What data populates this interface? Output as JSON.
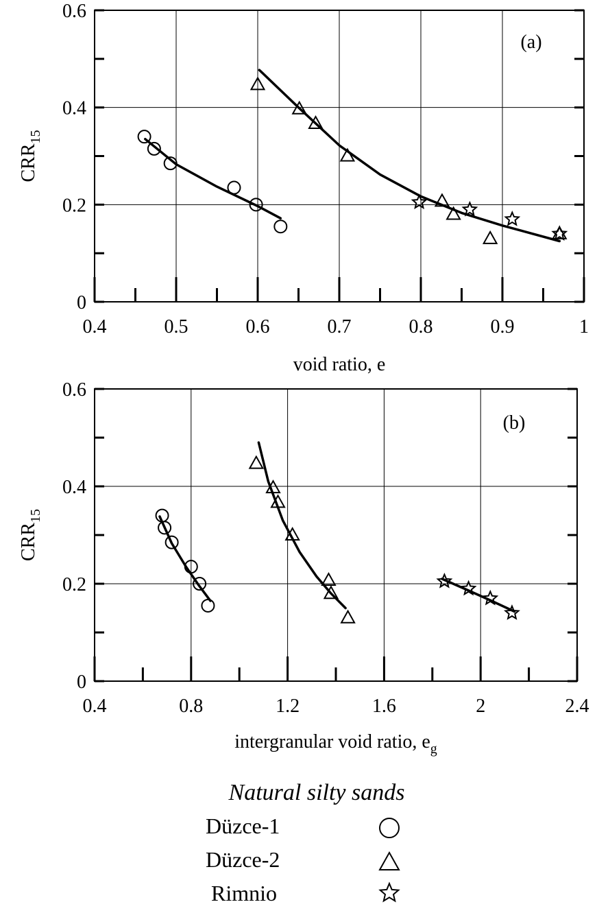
{
  "chart_data": [
    {
      "type": "scatter",
      "panel_label": "(a)",
      "xlabel": "void ratio, e",
      "xlabel_sub": "",
      "ylabel": "CRR",
      "ylabel_sub": "15",
      "xlim": [
        0.4,
        1.0
      ],
      "ylim": [
        0,
        0.6
      ],
      "xticks": [
        0.4,
        0.5,
        0.6,
        0.7,
        0.8,
        0.9,
        1.0
      ],
      "xtick_labels": [
        "0.4",
        "0.5",
        "0.6",
        "0.7",
        "0.8",
        "0.9",
        "1"
      ],
      "yticks": [
        0,
        0.2,
        0.4,
        0.6
      ],
      "ytick_labels": [
        "0",
        "0.2",
        "0.4",
        "0.6"
      ],
      "grid": true,
      "series": [
        {
          "name": "Düzce-1",
          "marker": "circle",
          "points": [
            [
              0.461,
              0.34
            ],
            [
              0.473,
              0.315
            ],
            [
              0.493,
              0.285
            ],
            [
              0.571,
              0.235
            ],
            [
              0.598,
              0.2
            ],
            [
              0.628,
              0.155
            ]
          ],
          "fit": [
            [
              0.462,
              0.335
            ],
            [
              0.5,
              0.283
            ],
            [
              0.55,
              0.237
            ],
            [
              0.6,
              0.197
            ],
            [
              0.628,
              0.172
            ]
          ]
        },
        {
          "name": "Düzce-2",
          "marker": "triangle",
          "points": [
            [
              0.6,
              0.447
            ],
            [
              0.651,
              0.397
            ],
            [
              0.671,
              0.367
            ],
            [
              0.71,
              0.3
            ],
            [
              0.826,
              0.207
            ],
            [
              0.84,
              0.18
            ],
            [
              0.885,
              0.13
            ],
            [
              0.97,
              0.14
            ]
          ],
          "fit": [
            [
              0.602,
              0.477
            ],
            [
              0.65,
              0.4
            ],
            [
              0.7,
              0.322
            ],
            [
              0.75,
              0.262
            ],
            [
              0.8,
              0.217
            ],
            [
              0.85,
              0.183
            ],
            [
              0.9,
              0.157
            ],
            [
              0.97,
              0.125
            ]
          ]
        },
        {
          "name": "Rimnio",
          "marker": "star",
          "points": [
            [
              0.798,
              0.205
            ],
            [
              0.86,
              0.19
            ],
            [
              0.912,
              0.17
            ],
            [
              0.97,
              0.14
            ]
          ],
          "fit": []
        }
      ]
    },
    {
      "type": "scatter",
      "panel_label": "(b)",
      "xlabel": "intergranular void ratio, e",
      "xlabel_sub": "g",
      "ylabel": "CRR",
      "ylabel_sub": "15",
      "xlim": [
        0.4,
        2.4
      ],
      "ylim": [
        0,
        0.6
      ],
      "xticks": [
        0.4,
        0.8,
        1.2,
        1.6,
        2.0,
        2.4
      ],
      "xtick_labels": [
        "0.4",
        "0.8",
        "1.2",
        "1.6",
        "2",
        "2.4"
      ],
      "yticks": [
        0,
        0.2,
        0.4,
        0.6
      ],
      "ytick_labels": [
        "0",
        "0.2",
        "0.4",
        "0.6"
      ],
      "grid": true,
      "series": [
        {
          "name": "Düzce-1",
          "marker": "circle",
          "points": [
            [
              0.68,
              0.34
            ],
            [
              0.69,
              0.315
            ],
            [
              0.72,
              0.285
            ],
            [
              0.8,
              0.235
            ],
            [
              0.835,
              0.2
            ],
            [
              0.87,
              0.155
            ]
          ],
          "fit": [
            [
              0.67,
              0.338
            ],
            [
              0.72,
              0.283
            ],
            [
              0.78,
              0.234
            ],
            [
              0.83,
              0.198
            ],
            [
              0.88,
              0.165
            ]
          ]
        },
        {
          "name": "Düzce-2",
          "marker": "triangle",
          "points": [
            [
              1.07,
              0.447
            ],
            [
              1.14,
              0.397
            ],
            [
              1.16,
              0.367
            ],
            [
              1.22,
              0.3
            ],
            [
              1.37,
              0.207
            ],
            [
              1.38,
              0.18
            ],
            [
              1.45,
              0.13
            ]
          ],
          "fit": [
            [
              1.08,
              0.49
            ],
            [
              1.12,
              0.41
            ],
            [
              1.18,
              0.33
            ],
            [
              1.25,
              0.265
            ],
            [
              1.32,
              0.215
            ],
            [
              1.38,
              0.18
            ],
            [
              1.44,
              0.15
            ]
          ]
        },
        {
          "name": "Rimnio",
          "marker": "star",
          "points": [
            [
              1.85,
              0.205
            ],
            [
              1.95,
              0.19
            ],
            [
              2.04,
              0.17
            ],
            [
              2.13,
              0.14
            ]
          ],
          "fit": [
            [
              1.84,
              0.21
            ],
            [
              1.95,
              0.186
            ],
            [
              2.04,
              0.166
            ],
            [
              2.14,
              0.143
            ]
          ]
        }
      ]
    }
  ],
  "legend": {
    "title": "Natural silty sands",
    "entries": [
      {
        "label": "Düzce-1",
        "marker": "circle"
      },
      {
        "label": "Düzce-2",
        "marker": "triangle"
      },
      {
        "label": "Rimnio",
        "marker": "star"
      }
    ]
  }
}
